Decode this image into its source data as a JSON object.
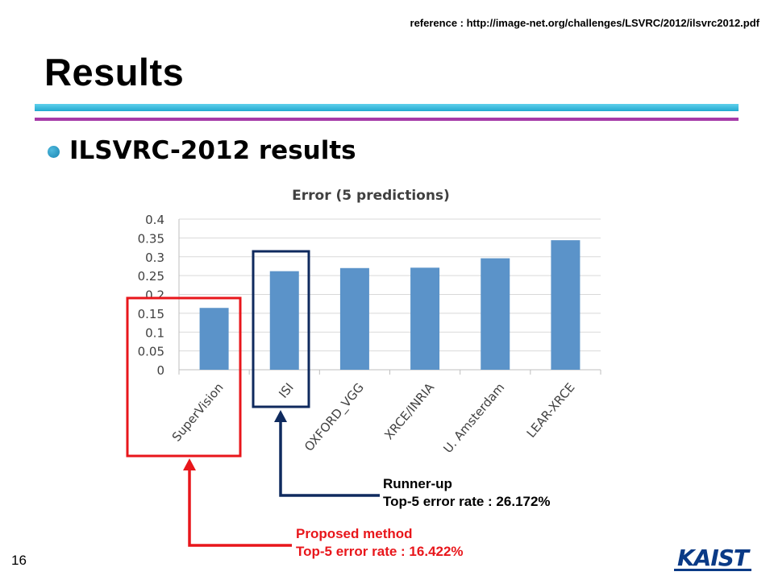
{
  "reference": "reference : http://image-net.org/challenges/LSVRC/2012/ilsvrc2012.pdf",
  "slide_title": "Results",
  "bullet": "ILSVRC-2012 results",
  "chart_data": {
    "type": "bar",
    "title": "Error (5 predictions)",
    "xlabel": "",
    "ylabel": "",
    "categories": [
      "SuperVision",
      "ISI",
      "OXFORD_VGG",
      "XRCE/INRIA",
      "U. Amsterdam",
      "LEAR-XRCE"
    ],
    "values": [
      0.16422,
      0.26172,
      0.27,
      0.271,
      0.296,
      0.344
    ],
    "ylim": [
      0,
      0.4
    ],
    "yticks": [
      "0",
      "0.05",
      "0.1",
      "0.15",
      "0.2",
      "0.25",
      "0.3",
      "0.35",
      "0.4"
    ],
    "grid": true,
    "bar_color": "#5b93c9"
  },
  "annotations": {
    "runner_up": {
      "line1": "Runner-up",
      "line2": "Top-5 error rate : 26.172%",
      "color": "#0f2a5e"
    },
    "proposed": {
      "line1": "Proposed method",
      "line2": "Top-5 error rate : 16.422%",
      "color": "#e8161b"
    }
  },
  "page_number": "16",
  "logo_text": "KAIST"
}
